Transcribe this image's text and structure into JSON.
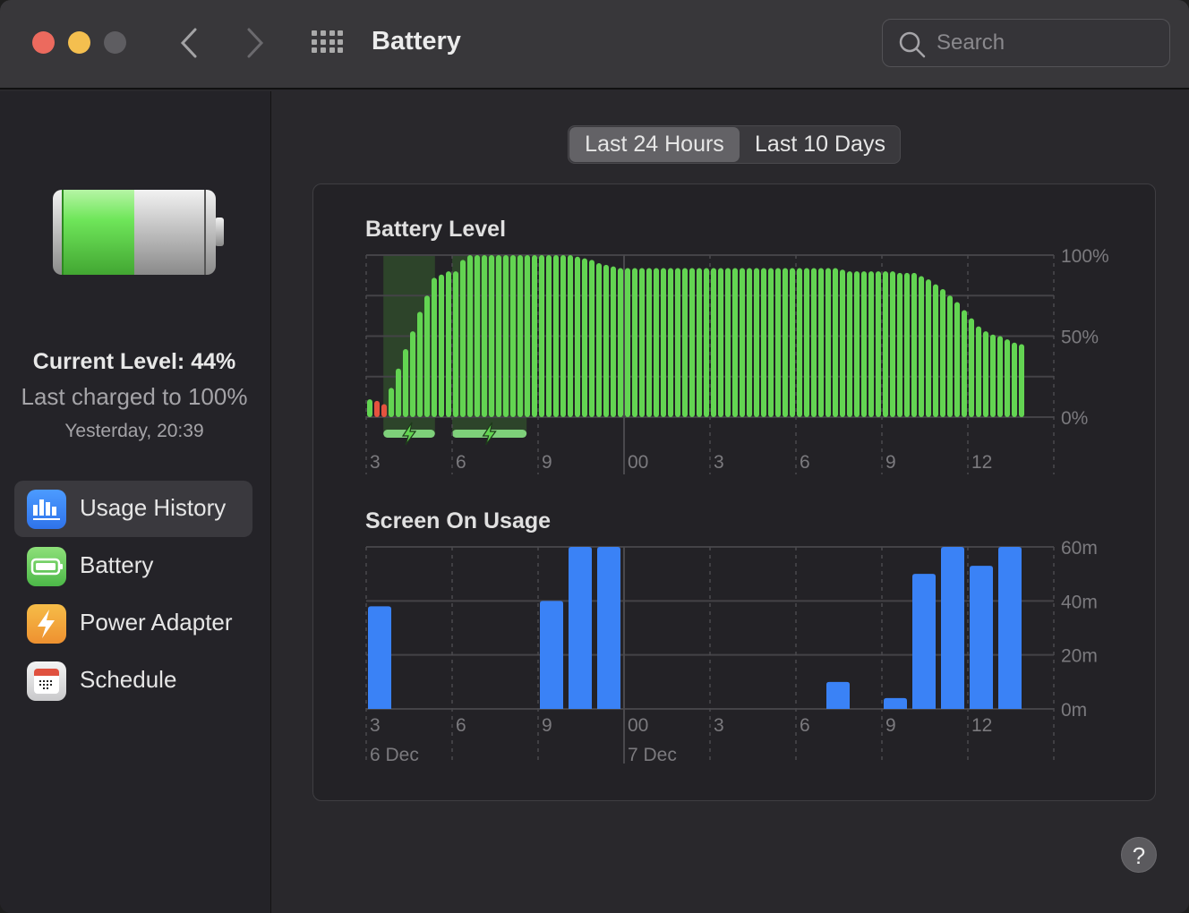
{
  "window": {
    "title": "Battery"
  },
  "toolbar": {
    "search_placeholder": "Search",
    "icons": [
      "close",
      "minimize",
      "zoom",
      "back-chevron",
      "forward-chevron",
      "show-all-grid",
      "search"
    ]
  },
  "sidebar": {
    "current_level": "Current Level: 44%",
    "last_charged": "Last charged to 100%",
    "last_charged_time": "Yesterday, 20:39",
    "battery_level_fraction": 0.44,
    "items": [
      {
        "label": "Usage History",
        "icon": "usage-history-icon",
        "selected": true,
        "color": "#3a86f5"
      },
      {
        "label": "Battery",
        "icon": "battery-icon",
        "selected": false,
        "color": "#5fc95a"
      },
      {
        "label": "Power Adapter",
        "icon": "power-adapter-icon",
        "selected": false,
        "color": "#f0a136"
      },
      {
        "label": "Schedule",
        "icon": "schedule-icon",
        "selected": false,
        "color": "#e0e0e0"
      }
    ]
  },
  "segmented": {
    "options": [
      "Last 24 Hours",
      "Last 10 Days"
    ],
    "selected": 0
  },
  "help": {
    "label": "?"
  },
  "chart_data": [
    {
      "type": "bar",
      "title": "Battery Level",
      "interval_minutes": 15,
      "x_tick_labels": [
        "3",
        "6",
        "9",
        "00",
        "3",
        "6",
        "9",
        "12"
      ],
      "y_tick_labels": [
        "100%",
        "50%",
        "0%"
      ],
      "ylim": [
        0,
        100
      ],
      "grid": true,
      "values": [
        11,
        10,
        8,
        18,
        30,
        42,
        53,
        65,
        75,
        86,
        88,
        90,
        90,
        97,
        100,
        100,
        100,
        100,
        100,
        100,
        100,
        100,
        100,
        100,
        100,
        100,
        100,
        100,
        100,
        99,
        98,
        97,
        95,
        94,
        93,
        92,
        92,
        92,
        92,
        92,
        92,
        92,
        92,
        92,
        92,
        92,
        92,
        92,
        92,
        92,
        92,
        92,
        92,
        92,
        92,
        92,
        92,
        92,
        92,
        92,
        92,
        92,
        92,
        92,
        92,
        92,
        91,
        90,
        90,
        90,
        90,
        90,
        90,
        90,
        89,
        89,
        89,
        87,
        85,
        82,
        79,
        75,
        71,
        66,
        61,
        56,
        53,
        51,
        50,
        48,
        46,
        45
      ],
      "low_battery_indices": [
        1,
        2
      ],
      "charging_periods": [
        [
          "15:36",
          "17:24"
        ],
        [
          "18:00",
          "20:36"
        ]
      ],
      "colors": {
        "normal": "#63d452",
        "low": "#e5533f",
        "charging": "#7ed07a"
      }
    },
    {
      "type": "bar",
      "title": "Screen On Usage",
      "x_tick_labels": [
        "3",
        "6",
        "9",
        "00",
        "3",
        "6",
        "9",
        "12"
      ],
      "date_labels": [
        "6 Dec",
        "7 Dec"
      ],
      "y_tick_labels": [
        "60m",
        "40m",
        "20m",
        "0m"
      ],
      "ylim": [
        0,
        60
      ],
      "grid": true,
      "categories": [
        "6 Dec 15:00",
        "6 Dec 21:00",
        "6 Dec 22:00",
        "6 Dec 23:00",
        "7 Dec 07:00",
        "7 Dec 09:00",
        "7 Dec 10:00",
        "7 Dec 11:00",
        "7 Dec 12:00",
        "7 Dec 13:00"
      ],
      "hour_offsets": [
        0,
        6,
        7,
        8,
        16,
        18,
        19,
        20,
        21,
        22
      ],
      "values": [
        38,
        40,
        60,
        60,
        10,
        4,
        50,
        60,
        53,
        60
      ],
      "unit": "minutes",
      "color": "#3a82f6"
    }
  ]
}
